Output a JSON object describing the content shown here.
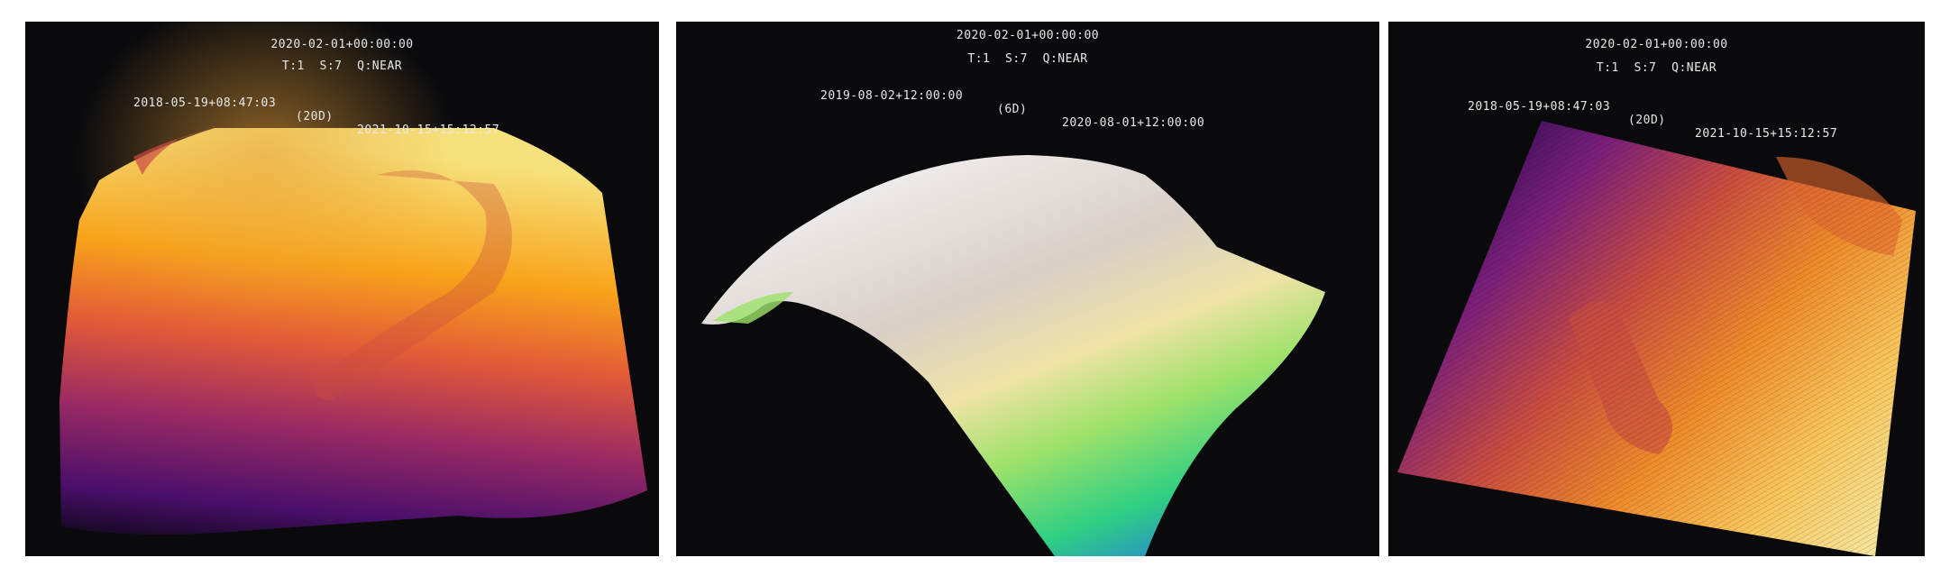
{
  "panels": [
    {
      "id": "surface-inferno-20d",
      "date": "2020-02-01+00:00:00",
      "params": "T:1  S:7  Q:NEAR",
      "range_start": "2018-05-19+08:47:03",
      "range_interval": "(20D)",
      "range_end": "2021-10-15+15:12:57",
      "colormap": "inferno",
      "colors": [
        "#12071e",
        "#4a0f6b",
        "#9a2a63",
        "#e25a38",
        "#f8a31a",
        "#f6e27d"
      ]
    },
    {
      "id": "surface-terrain-6d",
      "date": "2020-02-01+00:00:00",
      "params": "T:1  S:7  Q:NEAR",
      "range_start": "2019-08-02+12:00:00",
      "range_interval": "(6D)",
      "range_end": "2020-08-01+12:00:00",
      "colormap": "terrain",
      "colors": [
        "#2a6fe8",
        "#2ecf83",
        "#9ee26a",
        "#efe3a6",
        "#d9cfc8",
        "#f2eff0"
      ]
    },
    {
      "id": "surface-inferno-topdown-20d",
      "date": "2020-02-01+00:00:00",
      "params": "T:1  S:7  Q:NEAR",
      "range_start": "2018-05-19+08:47:03",
      "range_interval": "(20D)",
      "range_end": "2021-10-15+15:12:57",
      "colormap": "inferno",
      "colors": [
        "#230b4a",
        "#7a1f7a",
        "#c94d3f",
        "#ee8a2a",
        "#f8c55a",
        "#f5e7a0"
      ]
    }
  ]
}
